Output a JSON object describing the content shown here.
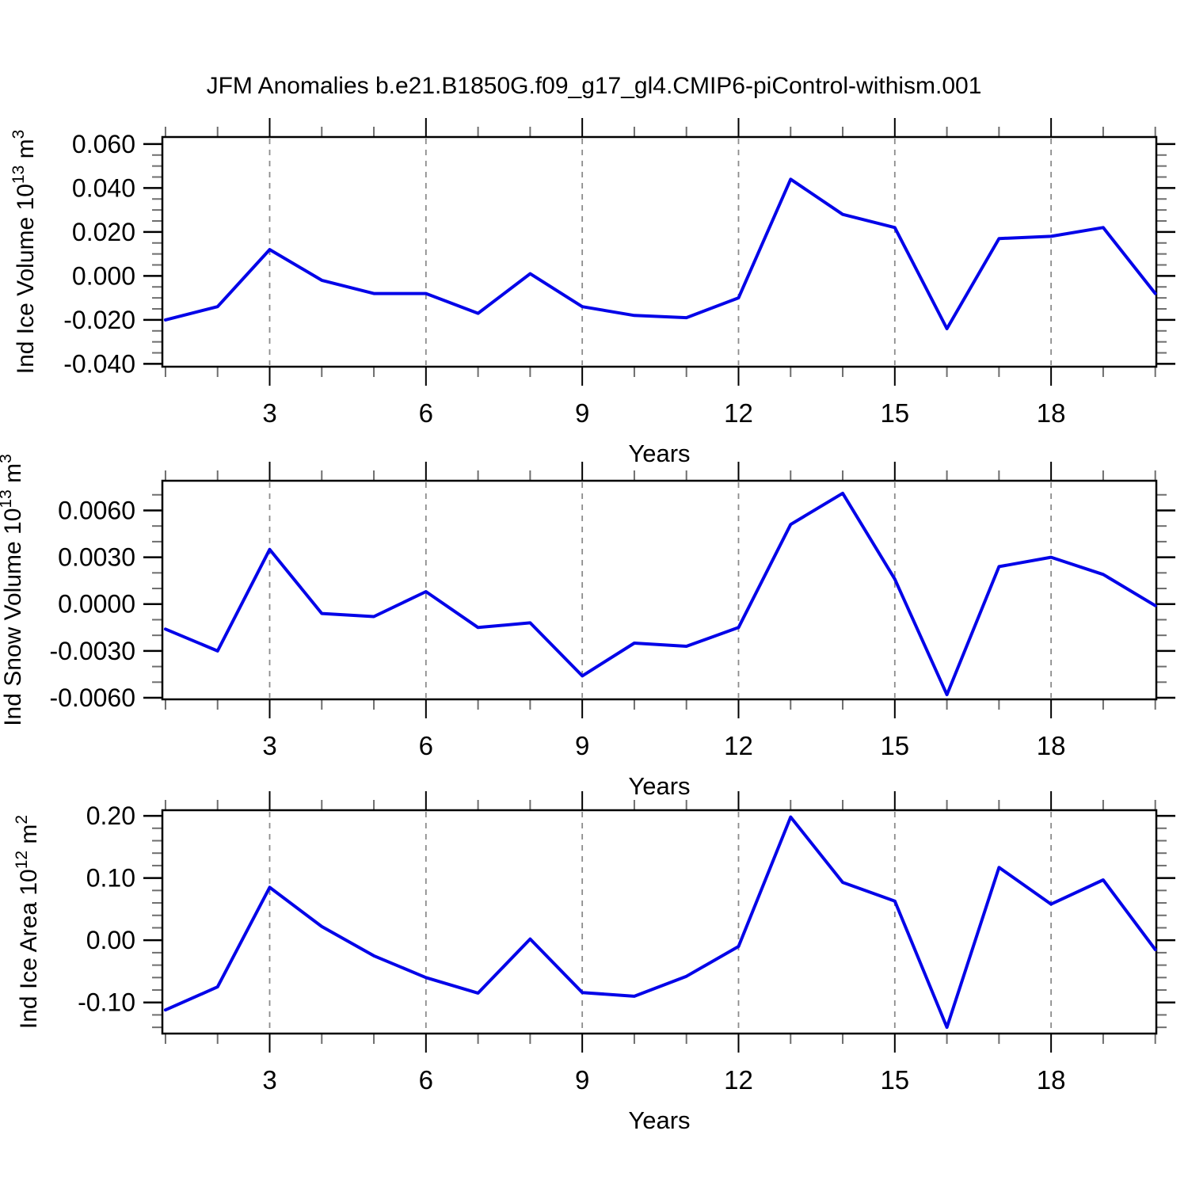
{
  "title": "JFM Anomalies b.e21.B1850G.f09_g17_gl4.CMIP6-piControl-withism.001",
  "colors": {
    "line": "#0404e8",
    "grid": "#8c8c8c",
    "axis": "#000000",
    "minor_tick": "#6e6e6e"
  },
  "chart_data": [
    {
      "name": "ind-ice-volume",
      "type": "line",
      "title": "",
      "xlabel": "Years",
      "ylabel_parts": [
        {
          "t": "Ind Ice Volume 10"
        },
        {
          "sup": "13"
        },
        {
          "t": " m"
        },
        {
          "sup": "3"
        }
      ],
      "x": [
        1,
        2,
        3,
        4,
        5,
        6,
        7,
        8,
        9,
        10,
        11,
        12,
        13,
        14,
        15,
        16,
        17,
        18,
        19,
        20
      ],
      "values": [
        -0.02,
        -0.014,
        0.012,
        -0.002,
        -0.008,
        -0.008,
        -0.017,
        0.001,
        -0.014,
        -0.018,
        -0.019,
        -0.01,
        0.044,
        0.028,
        0.022,
        -0.024,
        0.017,
        0.018,
        0.022,
        -0.008
      ],
      "xlim": [
        0.94,
        20.02
      ],
      "ylim": [
        -0.0413,
        0.0632
      ],
      "x_major_ticks": [
        3,
        6,
        9,
        12,
        15,
        18
      ],
      "x_major_labels": [
        "3",
        "6",
        "9",
        "12",
        "15",
        "18"
      ],
      "x_minor_step": 1,
      "y_major_ticks": [
        0.06,
        0.04,
        0.02,
        0.0,
        -0.02,
        -0.04
      ],
      "y_major_labels": [
        "0.060",
        "0.040",
        "0.020",
        "0.000",
        "-0.020",
        "-0.040"
      ],
      "y_minor_step": 0.005,
      "grid_x": [
        3,
        6,
        9,
        12,
        15,
        18
      ],
      "grid_on": true,
      "legend": "none"
    },
    {
      "name": "ind-snow-volume",
      "type": "line",
      "title": "",
      "xlabel": "Years",
      "ylabel_parts": [
        {
          "t": "Ind Snow Volume 10"
        },
        {
          "sup": "13"
        },
        {
          "t": " m"
        },
        {
          "sup": "3"
        }
      ],
      "x": [
        1,
        2,
        3,
        4,
        5,
        6,
        7,
        8,
        9,
        10,
        11,
        12,
        13,
        14,
        15,
        16,
        17,
        18,
        19,
        20
      ],
      "values": [
        -0.0016,
        -0.003,
        0.0035,
        -0.0006,
        -0.0008,
        0.0008,
        -0.0015,
        -0.0012,
        -0.0046,
        -0.0025,
        -0.0027,
        -0.0015,
        0.0051,
        0.0071,
        0.0016,
        -0.0058,
        0.0024,
        0.003,
        0.0019,
        -0.0001
      ],
      "xlim": [
        0.94,
        20.02
      ],
      "ylim": [
        -0.0061,
        0.0079
      ],
      "x_major_ticks": [
        3,
        6,
        9,
        12,
        15,
        18
      ],
      "x_major_labels": [
        "3",
        "6",
        "9",
        "12",
        "15",
        "18"
      ],
      "x_minor_step": 1,
      "y_major_ticks": [
        0.006,
        0.003,
        0.0,
        -0.003,
        -0.006
      ],
      "y_major_labels": [
        "0.0060",
        "0.0030",
        "0.0000",
        "-0.0030",
        "-0.0060"
      ],
      "y_minor_step": 0.001,
      "grid_x": [
        3,
        6,
        9,
        12,
        15,
        18
      ],
      "grid_on": true,
      "legend": "none"
    },
    {
      "name": "ind-ice-area",
      "type": "line",
      "title": "",
      "xlabel": "Years",
      "ylabel_parts": [
        {
          "t": "Ind Ice Area 10"
        },
        {
          "sup": "12"
        },
        {
          "t": " m"
        },
        {
          "sup": "2"
        }
      ],
      "x": [
        1,
        2,
        3,
        4,
        5,
        6,
        7,
        8,
        9,
        10,
        11,
        12,
        13,
        14,
        15,
        16,
        17,
        18,
        19,
        20
      ],
      "values": [
        -0.112,
        -0.075,
        0.085,
        0.022,
        -0.025,
        -0.06,
        -0.085,
        0.002,
        -0.084,
        -0.09,
        -0.058,
        -0.01,
        0.198,
        0.093,
        0.063,
        -0.14,
        0.117,
        0.058,
        0.097,
        -0.015
      ],
      "xlim": [
        0.94,
        20.02
      ],
      "ylim": [
        -0.15,
        0.209
      ],
      "x_major_ticks": [
        3,
        6,
        9,
        12,
        15,
        18
      ],
      "x_major_labels": [
        "3",
        "6",
        "9",
        "12",
        "15",
        "18"
      ],
      "x_minor_step": 1,
      "y_major_ticks": [
        0.2,
        0.1,
        0.0,
        -0.1
      ],
      "y_major_labels": [
        "0.20",
        "0.10",
        "0.00",
        "-0.10"
      ],
      "y_minor_step": 0.02,
      "grid_x": [
        3,
        6,
        9,
        12,
        15,
        18
      ],
      "grid_on": true,
      "legend": "none"
    }
  ]
}
